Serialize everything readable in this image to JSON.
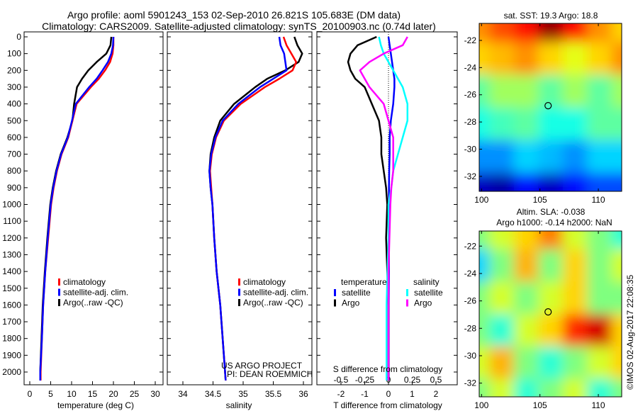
{
  "title": {
    "line1": "Argo profile: aoml 5901243_153 02-Sep-2010 26.821S 105.683E (DM data)",
    "line2": "Climatology: CARS2009. Satellite-adjusted climatology: synTS_20100903.nc (0.74d later)"
  },
  "colors": {
    "climatology": "#ff0000",
    "satellite": "#0000ff",
    "argo": "#000000",
    "sal_satellite": "#00ffff",
    "sal_argo": "#ff00ff"
  },
  "credits": {
    "project": "US ARGO PROJECT",
    "pi": "PI: DEAN ROEMMICH",
    "copyright": "©IMOS 02-Aug-2017 22:08:35"
  },
  "chart_data": [
    {
      "type": "line",
      "name": "temperature",
      "xlabel": "temperature (deg C)",
      "ylabel": "",
      "xlim": [
        -1,
        31
      ],
      "ylim": [
        2050,
        0
      ],
      "xticks": [
        0,
        5,
        10,
        15,
        20,
        25,
        30
      ],
      "yticks": [
        0,
        100,
        200,
        300,
        400,
        500,
        600,
        700,
        800,
        900,
        1000,
        1100,
        1200,
        1300,
        1400,
        1500,
        1600,
        1700,
        1800,
        1900,
        2000
      ],
      "depth": [
        0,
        50,
        100,
        150,
        200,
        250,
        300,
        400,
        500,
        600,
        700,
        800,
        900,
        1000,
        1200,
        1400,
        1600,
        1800,
        2000,
        2050
      ],
      "legend": [
        "climatology",
        "satellite-adj. clim.",
        "Argo(..raw -QC)"
      ],
      "series": [
        {
          "name": "climatology",
          "values": [
            20,
            20,
            19.8,
            19.2,
            18,
            16.5,
            14.6,
            11.2,
            10.2,
            9.2,
            7.6,
            6.5,
            5.7,
            5.1,
            4.4,
            3.7,
            3.2,
            2.9,
            2.6,
            2.6
          ]
        },
        {
          "name": "satellite-adj. clim.",
          "values": [
            20,
            19.9,
            19.5,
            18.7,
            17.4,
            16,
            14.2,
            11,
            10.1,
            9.1,
            7.5,
            6.4,
            5.6,
            5.0,
            4.3,
            3.7,
            3.2,
            2.9,
            2.5,
            2.5
          ]
        },
        {
          "name": "Argo(..raw -QC)",
          "values": [
            19.5,
            19.3,
            18.3,
            16,
            14,
            12.5,
            11.3,
            10.6,
            10.2,
            9.0,
            7.4,
            6.3,
            5.5,
            4.9,
            4.2,
            3.6,
            3.1,
            2.8,
            2.5,
            2.5
          ]
        }
      ]
    },
    {
      "type": "line",
      "name": "salinity",
      "xlabel": "salinity",
      "xlim": [
        33.7,
        36.1
      ],
      "ylim": [
        2050,
        0
      ],
      "xticks": [
        34,
        34.5,
        35,
        35.5,
        36
      ],
      "legend": [
        "climatology",
        "satellite-adj. clim.",
        "Argo(..raw -QC)"
      ],
      "series": [
        {
          "name": "climatology",
          "values": [
            35.67,
            35.72,
            35.8,
            35.88,
            35.82,
            35.6,
            35.36,
            34.96,
            34.68,
            34.55,
            34.48,
            34.45,
            34.47,
            34.49,
            34.52,
            34.56,
            34.62,
            34.66,
            34.7,
            34.71
          ]
        },
        {
          "name": "satellite-adj. clim.",
          "values": [
            35.6,
            35.62,
            35.68,
            35.7,
            35.72,
            35.5,
            35.28,
            34.92,
            34.66,
            34.54,
            34.47,
            34.44,
            34.46,
            34.49,
            34.52,
            34.56,
            34.62,
            34.66,
            34.7,
            34.71
          ]
        },
        {
          "name": "Argo(..raw -QC)",
          "values": [
            35.85,
            35.9,
            35.98,
            35.92,
            35.7,
            35.4,
            35.2,
            34.85,
            34.62,
            34.52,
            34.46,
            34.44,
            34.46,
            34.49,
            34.52,
            34.56,
            34.62,
            34.66,
            34.7,
            34.71
          ]
        }
      ]
    },
    {
      "type": "line",
      "name": "difference",
      "xlabel": "T difference from climatology",
      "x2label": "S difference from climatology",
      "xlim": [
        -3,
        3
      ],
      "xticks": [
        -2,
        -1,
        0,
        1,
        2
      ],
      "x2ticks": [
        "-0.5",
        "-0.25",
        "0",
        "0.25",
        "0.5"
      ],
      "legend": {
        "temperature": "temperature",
        "salinity": "salinity",
        "satellite": "satellite",
        "argo": "Argo"
      },
      "series": [
        {
          "name": "T satellite",
          "values": [
            0,
            0.05,
            0.1,
            0.15,
            0.2,
            0.25,
            0.25,
            0.2,
            0.1,
            0.05,
            0.05,
            0.03,
            0.02,
            0.02,
            0.02,
            0.02,
            0.01,
            0.01,
            0.01,
            0.01
          ]
        },
        {
          "name": "T Argo",
          "values": [
            -0.5,
            -1.3,
            -1.6,
            -1.7,
            -1.6,
            -1.4,
            -1.0,
            -0.7,
            -0.4,
            -0.3,
            -0.3,
            -0.2,
            -0.1,
            -0.05,
            -0.1,
            -0.05,
            0,
            0,
            0,
            0
          ]
        },
        {
          "name": "S satellite",
          "values": [
            -0.1,
            -0.08,
            -0.05,
            0,
            0.05,
            0.1,
            0.15,
            0.2,
            0.2,
            0.15,
            0.1,
            0.05,
            0.03,
            0,
            0,
            -0.01,
            -0.02,
            -0.02,
            -0.02,
            -0.02
          ]
        },
        {
          "name": "S Argo",
          "values": [
            0.2,
            0.15,
            -0.05,
            -0.2,
            -0.3,
            -0.25,
            -0.2,
            -0.05,
            0,
            0.05,
            0.05,
            0.05,
            0.03,
            0.02,
            0.01,
            0,
            0,
            0,
            0,
            0
          ]
        }
      ]
    },
    {
      "type": "heatmap",
      "name": "sst-map",
      "title": "sat. SST: 19.3 Argo: 18.8",
      "xticks": [
        100,
        105,
        110
      ],
      "yticks": [
        -22,
        -24,
        -26,
        -28,
        -30,
        -32
      ],
      "xlim": [
        99.8,
        112
      ],
      "ylim": [
        -33.1,
        -20.75
      ],
      "crange": [
        15,
        22.5
      ],
      "marker": [
        105.7,
        -26.8
      ],
      "values": [
        [
          20.5,
          21,
          21.5,
          22.3,
          21.5,
          20.5,
          20
        ],
        [
          20,
          20.2,
          20.5,
          20,
          19.5,
          20,
          20.5
        ],
        [
          18.5,
          19,
          19,
          18.5,
          19,
          18.5,
          19
        ],
        [
          18,
          18.3,
          18.5,
          18,
          18,
          18.5,
          18.5
        ],
        [
          17,
          17,
          17.5,
          17.3,
          17,
          17.5,
          17.5
        ],
        [
          15.5,
          15.3,
          16,
          15.5,
          16,
          16.5,
          16.5
        ]
      ]
    },
    {
      "type": "heatmap",
      "name": "sla-map",
      "title": "Altim. SLA: -0.038",
      "subtitle": "Argo h1000: -0.14 h2000: NaN",
      "xticks": [
        100,
        105,
        110
      ],
      "yticks": [
        -22,
        -24,
        -26,
        -28,
        -30,
        -32
      ],
      "xlim": [
        99.8,
        112
      ],
      "ylim": [
        -33,
        -20.9
      ],
      "crange": [
        -0.3,
        0.3
      ],
      "marker": [
        105.7,
        -26.8
      ],
      "values": [
        [
          0,
          0.05,
          0.1,
          0.15,
          0.05,
          0,
          -0.05
        ],
        [
          -0.1,
          0,
          0.12,
          0,
          0.1,
          0,
          0.05
        ],
        [
          0,
          0.05,
          0,
          0.05,
          0.1,
          0,
          0
        ],
        [
          0,
          -0.05,
          0.05,
          0.1,
          0.2,
          0.25,
          0.1
        ],
        [
          0.05,
          0.12,
          0,
          -0.05,
          0,
          0.05,
          0.1
        ],
        [
          0,
          0.05,
          -0.05,
          0,
          0.05,
          -0.05,
          0
        ]
      ]
    }
  ]
}
